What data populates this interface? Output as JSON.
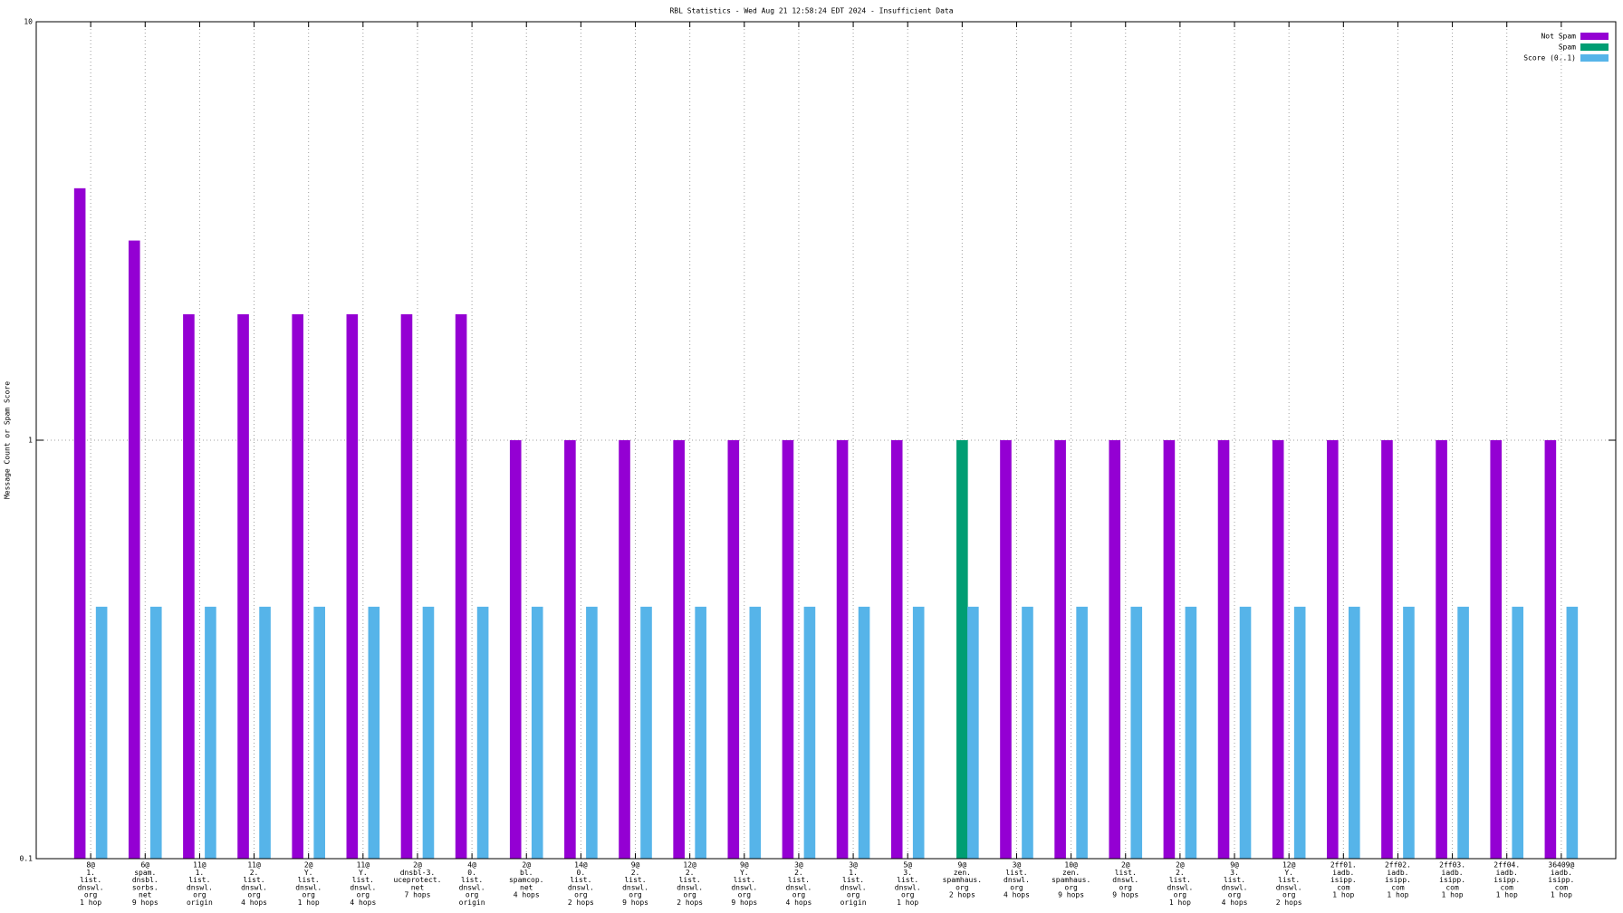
{
  "chart_data": {
    "type": "bar",
    "title": "RBL Statistics - Wed Aug 21 12:58:24 EDT 2024 - Insufficient Data",
    "y_label": "Message Count or Spam Score",
    "log": true,
    "grid": true,
    "legend": "upper right",
    "ylim": [
      0.1,
      10
    ],
    "yticks": [
      0.1,
      1,
      10
    ],
    "categories": [
      [
        "8@",
        "1.",
        "list.",
        "dnswl.",
        "org",
        "1 hop"
      ],
      [
        "6@",
        "spam.",
        "dnsbl.",
        "sorbs.",
        "net",
        "9 hops"
      ],
      [
        "11@",
        "1.",
        "list.",
        "dnswl.",
        "org",
        "origin"
      ],
      [
        "11@",
        "2.",
        "list.",
        "dnswl.",
        "org",
        "4 hops"
      ],
      [
        "2@",
        "Y.",
        "list.",
        "dnswl.",
        "org",
        "1 hop"
      ],
      [
        "11@",
        "Y.",
        "list.",
        "dnswl.",
        "org",
        "4 hops"
      ],
      [
        "2@",
        "dnsbl-3.",
        "uceprotect.",
        "net",
        "7 hops"
      ],
      [
        "4@",
        "0.",
        "list.",
        "dnswl.",
        "org",
        "origin"
      ],
      [
        "2@",
        "bl.",
        "spamcop.",
        "net",
        "4 hops"
      ],
      [
        "14@",
        "0.",
        "list.",
        "dnswl.",
        "org",
        "2 hops"
      ],
      [
        "9@",
        "2.",
        "list.",
        "dnswl.",
        "org",
        "9 hops"
      ],
      [
        "12@",
        "2.",
        "list.",
        "dnswl.",
        "org",
        "2 hops"
      ],
      [
        "9@",
        "Y.",
        "list.",
        "dnswl.",
        "org",
        "9 hops"
      ],
      [
        "3@",
        "2.",
        "list.",
        "dnswl.",
        "org",
        "4 hops"
      ],
      [
        "3@",
        "1.",
        "list.",
        "dnswl.",
        "org",
        "origin"
      ],
      [
        "5@",
        "3.",
        "list.",
        "dnswl.",
        "org",
        "1 hop"
      ],
      [
        "9@",
        "zen.",
        "spamhaus.",
        "org",
        "2 hops"
      ],
      [
        "3@",
        "list.",
        "dnswl.",
        "org",
        "4 hops"
      ],
      [
        "10@",
        "zen.",
        "spamhaus.",
        "org",
        "9 hops"
      ],
      [
        "2@",
        "list.",
        "dnswl.",
        "org",
        "9 hops"
      ],
      [
        "2@",
        "2.",
        "list.",
        "dnswl.",
        "org",
        "1 hop"
      ],
      [
        "9@",
        "3.",
        "list.",
        "dnswl.",
        "org",
        "4 hops"
      ],
      [
        "12@",
        "Y.",
        "list.",
        "dnswl.",
        "org",
        "2 hops"
      ],
      [
        "2ff01.",
        "iadb.",
        "isipp.",
        "com",
        "1 hop"
      ],
      [
        "2ff02.",
        "iadb.",
        "isipp.",
        "com",
        "1 hop"
      ],
      [
        "2ff03.",
        "iadb.",
        "isipp.",
        "com",
        "1 hop"
      ],
      [
        "2ff04.",
        "iadb.",
        "isipp.",
        "com",
        "1 hop"
      ],
      [
        "36409@",
        "iadb.",
        "isipp.",
        "com",
        "1 hop"
      ]
    ],
    "series": [
      {
        "name": "Not Spam",
        "color": "#9400d3",
        "values": [
          4,
          3,
          2,
          2,
          2,
          2,
          2,
          2,
          1,
          1,
          1,
          1,
          1,
          1,
          1,
          1,
          null,
          1,
          1,
          1,
          1,
          1,
          1,
          1,
          1,
          1,
          1,
          1
        ]
      },
      {
        "name": "Spam",
        "color": "#009e73",
        "values": [
          null,
          null,
          null,
          null,
          null,
          null,
          null,
          null,
          null,
          null,
          null,
          null,
          null,
          null,
          null,
          null,
          1,
          null,
          null,
          null,
          null,
          null,
          null,
          null,
          null,
          null,
          null,
          null
        ]
      },
      {
        "name": "Score (0..1)",
        "color": "#56b4e9",
        "values": [
          0.4,
          0.4,
          0.4,
          0.4,
          0.4,
          0.4,
          0.4,
          0.4,
          0.4,
          0.4,
          0.4,
          0.4,
          0.4,
          0.4,
          0.4,
          0.4,
          0.4,
          0.4,
          0.4,
          0.4,
          0.4,
          0.4,
          0.4,
          0.4,
          0.4,
          0.4,
          0.4,
          0.4
        ]
      }
    ]
  }
}
